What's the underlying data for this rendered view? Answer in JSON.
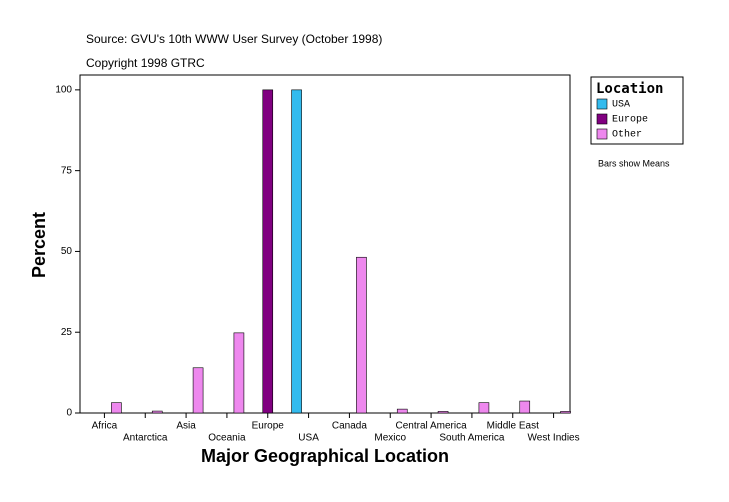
{
  "chart_data": {
    "type": "bar",
    "source": "Source: GVU's 10th WWW User Survey (October 1998)",
    "copyright": "Copyright 1998 GTRC",
    "xlabel": "Major Geographical Location",
    "ylabel": "Percent",
    "legend_title": "Location",
    "note": "Bars show Means",
    "categories": [
      "Africa",
      "Antarctica",
      "Asia",
      "Oceania",
      "Europe",
      "USA",
      "Canada",
      "Mexico",
      "Central America",
      "South America",
      "Middle East",
      "West Indies"
    ],
    "series": [
      {
        "name": "USA",
        "color": "#33bbee",
        "values": [
          null,
          null,
          null,
          null,
          null,
          100,
          null,
          null,
          null,
          null,
          null,
          null
        ]
      },
      {
        "name": "Europe",
        "color": "#800080",
        "values": [
          null,
          null,
          null,
          null,
          100,
          null,
          null,
          null,
          null,
          null,
          null,
          null
        ]
      },
      {
        "name": "Other",
        "color": "#ee88ee",
        "values": [
          3.2,
          0.6,
          14,
          24.8,
          null,
          null,
          48.2,
          1.2,
          0.5,
          3.2,
          3.7,
          0.5
        ]
      }
    ],
    "ylim": [
      0,
      104.6
    ],
    "yticks": [
      0,
      25,
      50,
      75,
      100
    ],
    "legend": "right"
  }
}
